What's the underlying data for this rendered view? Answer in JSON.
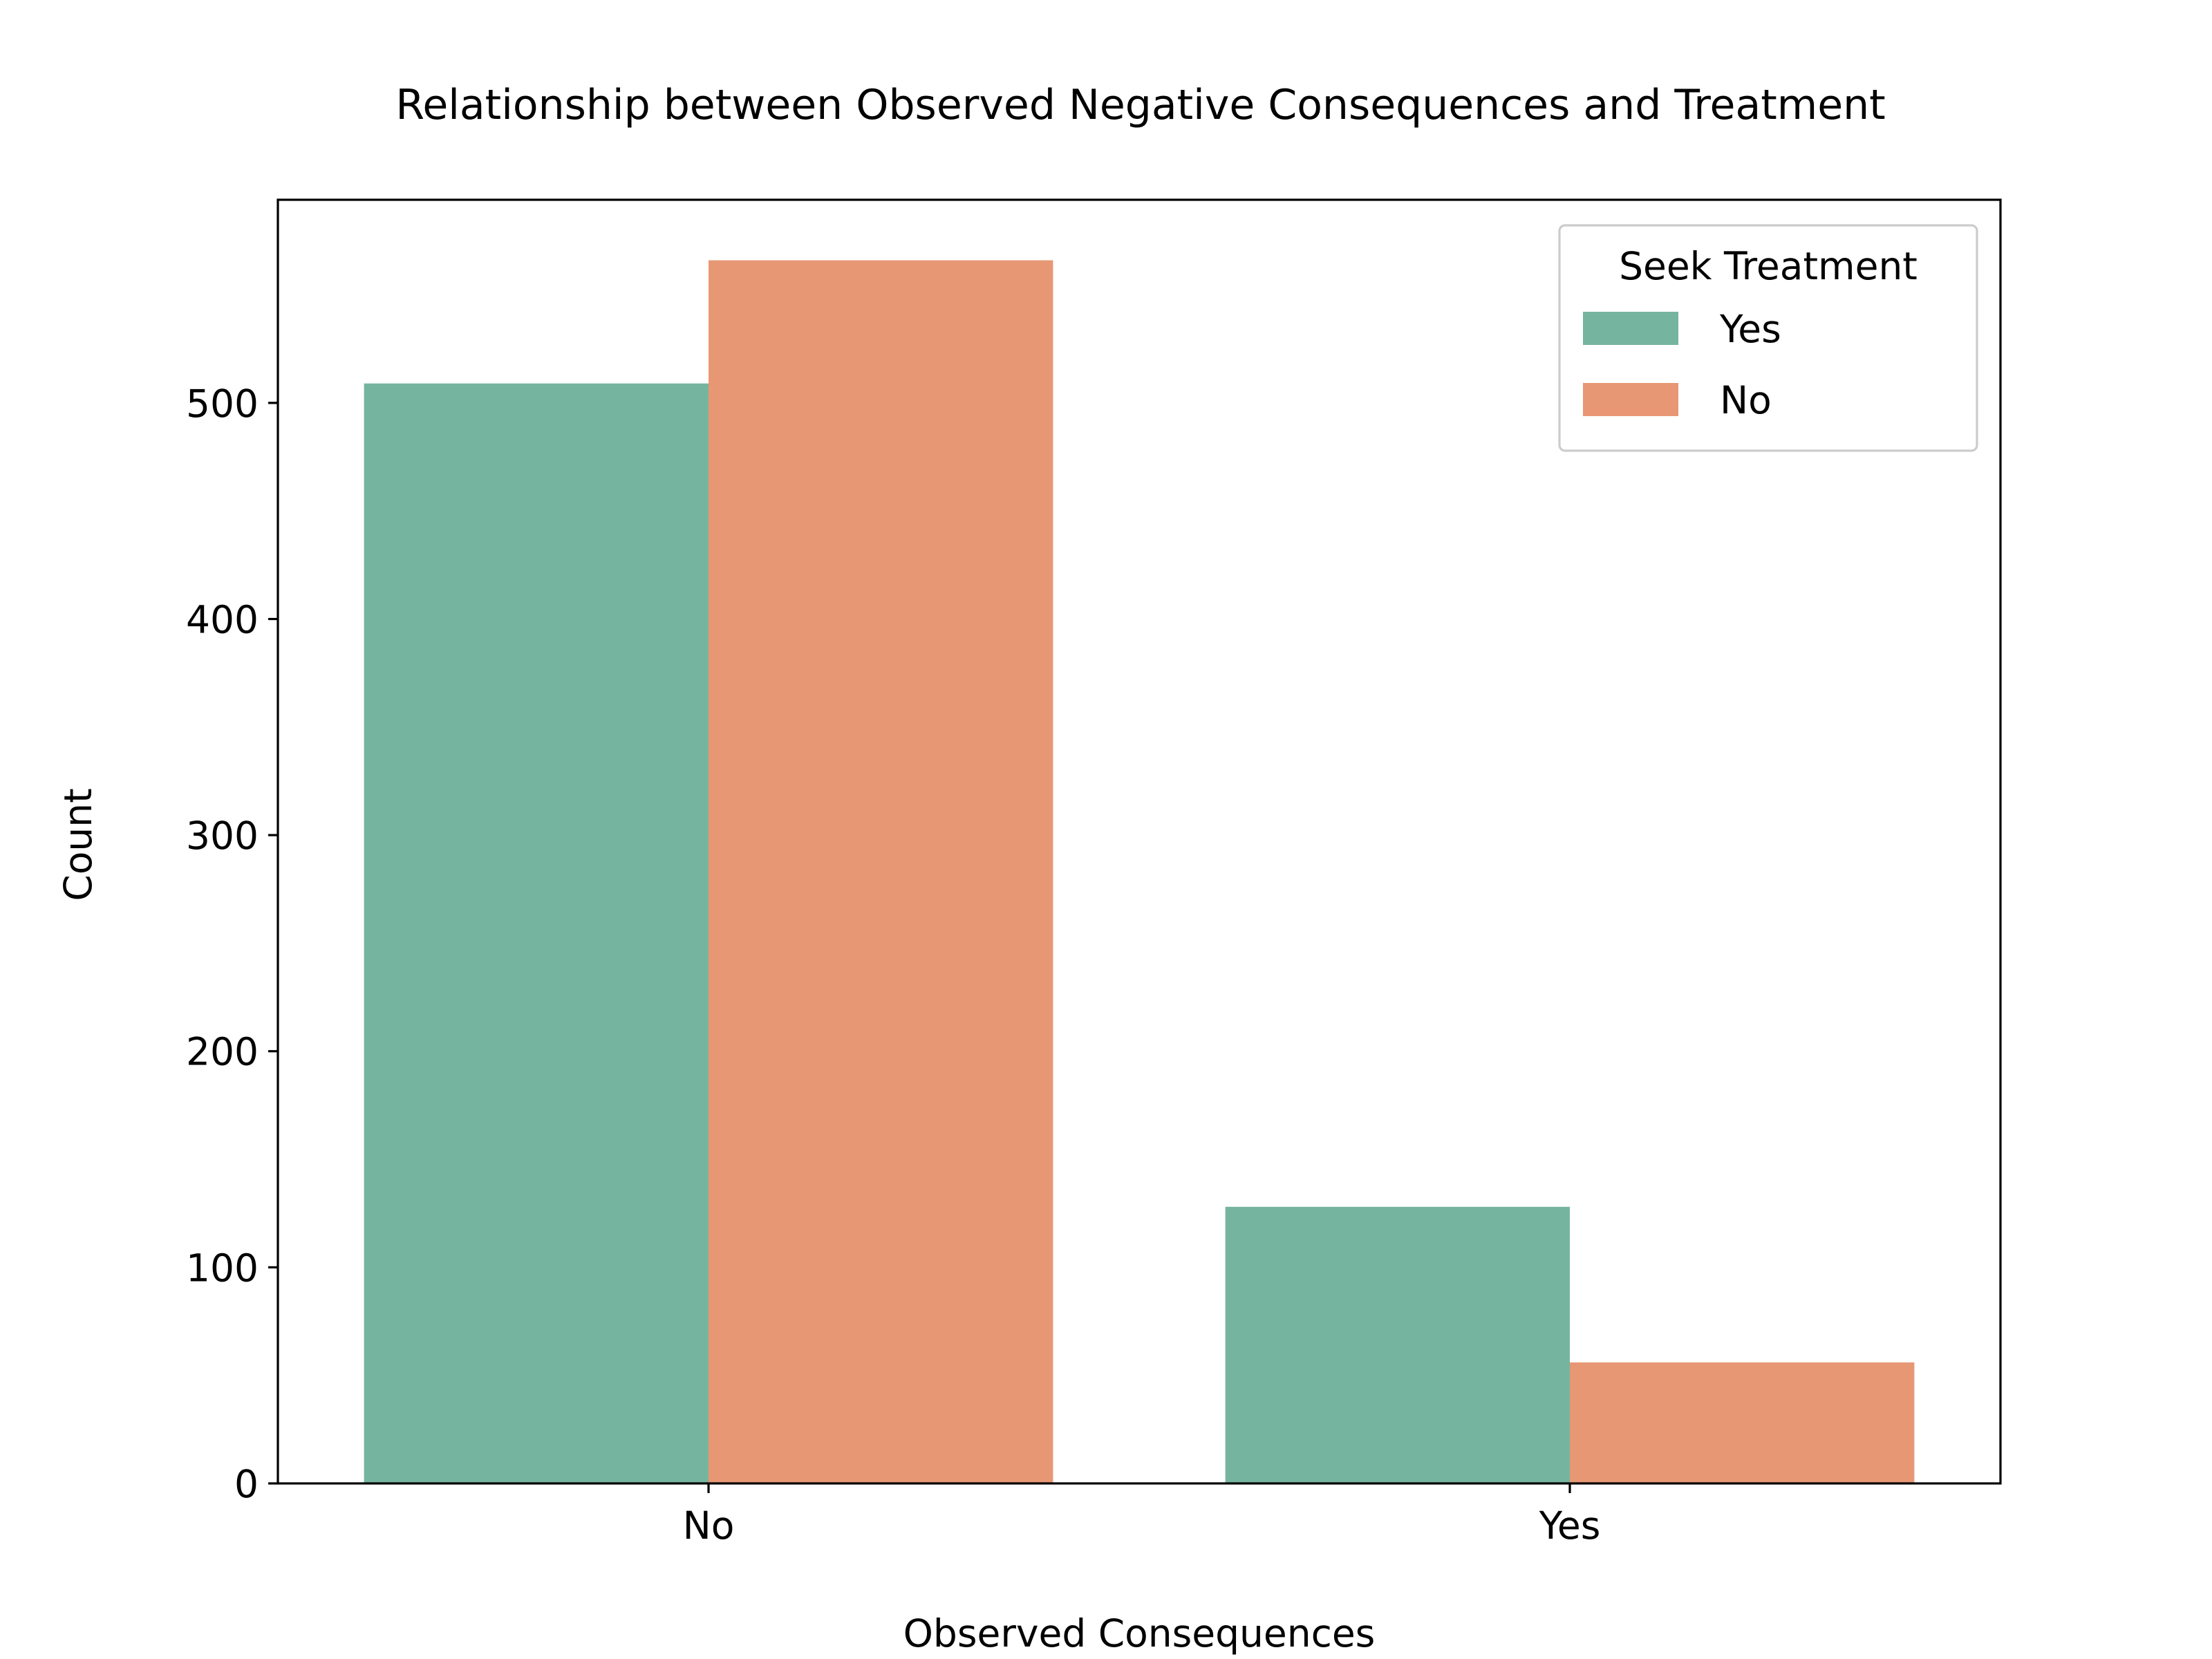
{
  "chart_data": {
    "type": "bar",
    "title": "Relationship between Observed Negative Consequences and Treatment",
    "xlabel": "Observed Consequences",
    "ylabel": "Count",
    "categories": [
      "No",
      "Yes"
    ],
    "series": [
      {
        "name": "Yes",
        "values": [
          509,
          128
        ],
        "color": "#75b5a0"
      },
      {
        "name": "No",
        "values": [
          566,
          56
        ],
        "color": "#e89774"
      }
    ],
    "ylim": [
      0,
      594
    ],
    "yticks": [
      0,
      100,
      200,
      300,
      400,
      500
    ],
    "grid": false,
    "legend": {
      "title": "Seek Treatment",
      "placement": "top-right"
    }
  }
}
